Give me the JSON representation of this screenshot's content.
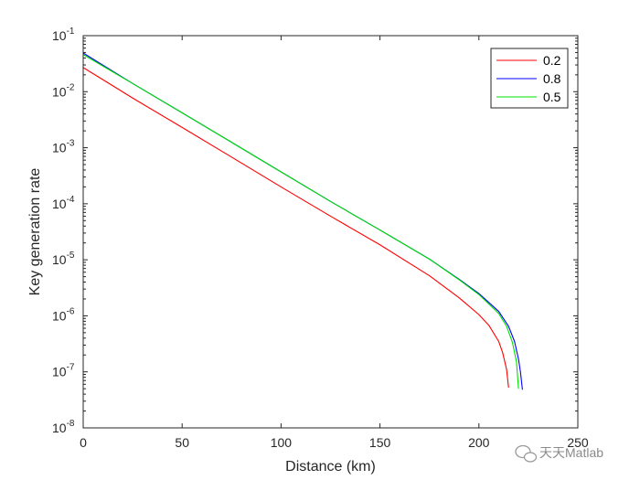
{
  "chart_data": {
    "type": "line",
    "title": "",
    "xlabel": "Distance (km)",
    "ylabel": "Key generation rate",
    "xlim": [
      0,
      250
    ],
    "ylim": [
      1e-08,
      0.1
    ],
    "yscale": "log",
    "grid": false,
    "legend_position": "top-right",
    "x_ticks": [
      0,
      50,
      100,
      150,
      200,
      250
    ],
    "x_tick_labels": [
      "0",
      "50",
      "100",
      "150",
      "200",
      "250"
    ],
    "y_ticks": [
      1e-08,
      1e-07,
      1e-06,
      1e-05,
      0.0001,
      0.001,
      0.01,
      0.1
    ],
    "y_tick_bases": [
      "10",
      "10",
      "10",
      "10",
      "10",
      "10",
      "10",
      "10"
    ],
    "y_tick_exponents": [
      "-8",
      "-7",
      "-6",
      "-5",
      "-4",
      "-3",
      "-2",
      "-1"
    ],
    "series": [
      {
        "name": "0.2",
        "color": "#ff0000",
        "x": [
          0,
          25,
          50,
          75,
          100,
          125,
          150,
          175,
          190,
          200,
          205,
          210,
          212,
          214,
          215
        ],
        "y": [
          0.027,
          0.0077,
          0.0023,
          0.00068,
          0.0002,
          6e-05,
          1.85e-05,
          5.2e-06,
          2.1e-06,
          1.05e-06,
          6.8e-07,
          3.5e-07,
          2.2e-07,
          1.1e-07,
          5.2e-08
        ]
      },
      {
        "name": "0.8",
        "color": "#0000ff",
        "x": [
          0,
          25,
          50,
          75,
          100,
          125,
          150,
          175,
          190,
          200,
          210,
          215,
          218,
          220,
          221,
          222
        ],
        "y": [
          0.049,
          0.014,
          0.0042,
          0.00125,
          0.00037,
          0.00011,
          3.4e-05,
          1.03e-05,
          4.5e-06,
          2.5e-06,
          1.2e-06,
          6.5e-07,
          3.5e-07,
          1.7e-07,
          1e-07,
          4.8e-08
        ]
      },
      {
        "name": "0.5",
        "color": "#00e000",
        "x": [
          0,
          25,
          50,
          75,
          100,
          125,
          150,
          175,
          190,
          200,
          210,
          214,
          217,
          219,
          220
        ],
        "y": [
          0.046,
          0.014,
          0.0042,
          0.00125,
          0.00037,
          0.00011,
          3.4e-05,
          1.03e-05,
          4.4e-06,
          2.4e-06,
          1.1e-06,
          6.5e-07,
          3.3e-07,
          1.5e-07,
          5e-08
        ]
      }
    ]
  },
  "watermark": {
    "text": "天天Matlab",
    "icon": "wechat-icon"
  }
}
